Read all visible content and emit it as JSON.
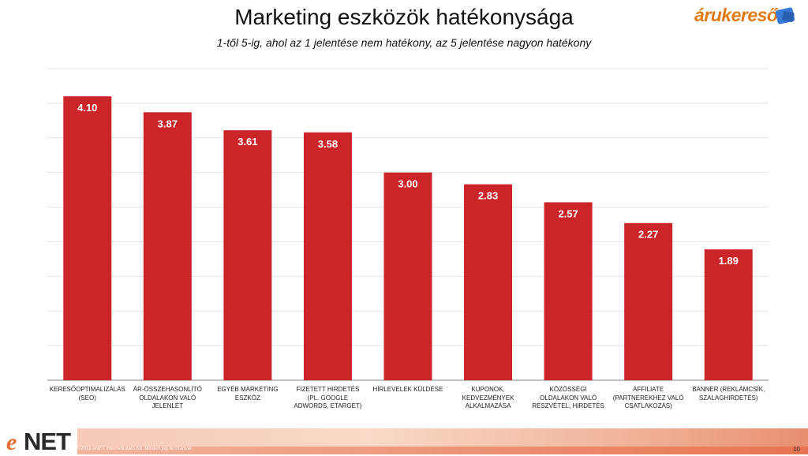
{
  "header": {
    "title": "Marketing eszközök hatékonysága",
    "subtitle": "1-től 5-ig, ahol az 1 jelentése nem hatékony, az 5 jelentése nagyon hatékony",
    "logo_text": "árukereső"
  },
  "chart_data": {
    "type": "bar",
    "title": "Marketing eszközök hatékonysága",
    "subtitle": "1-től 5-ig, ahol az 1 jelentése nem hatékony, az 5 jelentése nagyon hatékony",
    "categories": [
      "KERESŐOPTIMALIZÁLÁS (SEO)",
      "ÁR-ÖSSZEHASONLÍTÓ OLDALAKON VALÓ JELENLÉT",
      "EGYÉB MARKETING ESZKÖZ",
      "FIZETETT HIRDETÉS (PL. GOOGLE ADWORDS, ETARGET)",
      "HÍRLEVELEK KÜLDÉSE",
      "KUPONOK, KEDVEZMÉNYEK ALKALMAZÁSA",
      "KÖZÖSSÉGI OLDALAKON VALÓ RÉSZVÉTEL, HIRDETÉS",
      "AFFILIATE (PARTNEREKHEZ VALÓ CSATLAKOZÁS)",
      "BANNER (REKLÁMCSÍK, SZALAGHIRDETÉS)"
    ],
    "values": [
      4.1,
      3.87,
      3.61,
      3.58,
      3.0,
      2.83,
      2.57,
      2.27,
      1.89
    ],
    "data_labels": [
      "4.10",
      "3.87",
      "3.61",
      "3.58",
      "3.00",
      "2.83",
      "2.57",
      "2.27",
      "1.89"
    ],
    "ylim": [
      0,
      4.5
    ],
    "grid": true,
    "bar_color": "#cc2529",
    "label_color": "#ffffff"
  },
  "footer": {
    "brand": "NET",
    "brand_prefix": "e",
    "copyright": "©2013 eNET Internetkutató Kft. Minden jog fenntartva!",
    "page_number": "10"
  }
}
